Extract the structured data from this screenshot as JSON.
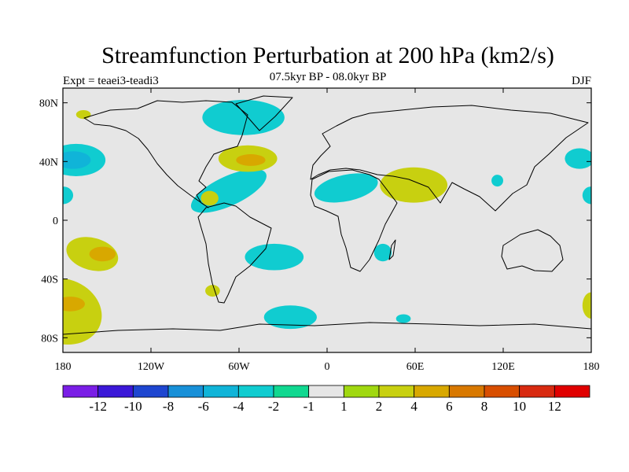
{
  "chart_data": {
    "type": "filled-contour-map",
    "title": "Streamfunction Perturbation at 200 hPa (km2/s)",
    "subtitle": "07.5kyr BP - 08.0kyr BP",
    "left_label": "Expt = teaei3-teadi3",
    "right_label": "DJF",
    "projection": "cylindrical-equidistant",
    "lon_range": [
      -180,
      180
    ],
    "lat_range": [
      -90,
      90
    ],
    "x_ticks": [
      {
        "value": -180,
        "label": "180"
      },
      {
        "value": -120,
        "label": "120W"
      },
      {
        "value": -60,
        "label": "60W"
      },
      {
        "value": 0,
        "label": "0"
      },
      {
        "value": 60,
        "label": "60E"
      },
      {
        "value": 120,
        "label": "120E"
      },
      {
        "value": 180,
        "label": "180"
      }
    ],
    "y_ticks": [
      {
        "value": 80,
        "label": "80N"
      },
      {
        "value": 40,
        "label": "40N"
      },
      {
        "value": 0,
        "label": "0"
      },
      {
        "value": -40,
        "label": "40S"
      },
      {
        "value": -80,
        "label": "80S"
      }
    ],
    "colorbar": {
      "labels": [
        "-12",
        "-10",
        "-8",
        "-6",
        "-4",
        "-2",
        "-1",
        "1",
        "2",
        "4",
        "6",
        "8",
        "10",
        "12"
      ],
      "colors": [
        "#7a1ee6",
        "#3b18d8",
        "#1e46d0",
        "#1890d8",
        "#10b4d8",
        "#10ccd0",
        "#10d890",
        "#e6e6e6",
        "#a0d810",
        "#c8d010",
        "#d8a800",
        "#d87800",
        "#d84e00",
        "#d82a10",
        "#e00000"
      ]
    },
    "background_color": "#e6e6e6",
    "regions": [
      {
        "lon": -171,
        "lat": 41,
        "rx": 20,
        "ry": 11,
        "level": "-2"
      },
      {
        "lon": -173,
        "lat": 41,
        "rx": 12,
        "ry": 6,
        "level": "-4"
      },
      {
        "lon": -180,
        "lat": 17,
        "rx": 7,
        "ry": 6,
        "level": "-2"
      },
      {
        "lon": -57,
        "lat": 70,
        "rx": 28,
        "ry": 12,
        "level": "-2"
      },
      {
        "lon": -67,
        "lat": 20,
        "rx": 28,
        "ry": 10,
        "level": "-2",
        "rot": -25
      },
      {
        "lon": -36,
        "lat": -25,
        "rx": 20,
        "ry": 9,
        "level": "-2"
      },
      {
        "lon": -25,
        "lat": -66,
        "rx": 18,
        "ry": 8,
        "level": "-2"
      },
      {
        "lon": 52,
        "lat": -67,
        "rx": 5,
        "ry": 3,
        "level": "-2"
      },
      {
        "lon": 13,
        "lat": 22,
        "rx": 22,
        "ry": 9,
        "level": "-2",
        "rot": -12
      },
      {
        "lon": 38,
        "lat": -22,
        "rx": 6,
        "ry": 6,
        "level": "-2"
      },
      {
        "lon": 116,
        "lat": 27,
        "rx": 4,
        "ry": 4,
        "level": "-2"
      },
      {
        "lon": 172,
        "lat": 42,
        "rx": 10,
        "ry": 7,
        "level": "-2"
      },
      {
        "lon": 180,
        "lat": 17,
        "rx": 6,
        "ry": 6,
        "level": "-2"
      },
      {
        "lon": -160,
        "lat": -23,
        "rx": 18,
        "ry": 11,
        "level": "2",
        "rot": 15
      },
      {
        "lon": -153,
        "lat": -23,
        "rx": 9,
        "ry": 5,
        "level": "4"
      },
      {
        "lon": -180,
        "lat": -62,
        "rx": 27,
        "ry": 22,
        "level": "2",
        "rot": 20
      },
      {
        "lon": -175,
        "lat": -57,
        "rx": 10,
        "ry": 5,
        "level": "4"
      },
      {
        "lon": -54,
        "lat": 42,
        "rx": 20,
        "ry": 9,
        "level": "2"
      },
      {
        "lon": -52,
        "lat": 41,
        "rx": 10,
        "ry": 4,
        "level": "4"
      },
      {
        "lon": 59,
        "lat": 24,
        "rx": 23,
        "ry": 12,
        "level": "2"
      },
      {
        "lon": 180,
        "lat": -58,
        "rx": 6,
        "ry": 9,
        "level": "2"
      },
      {
        "lon": -166,
        "lat": 72,
        "rx": 5,
        "ry": 3,
        "level": "2"
      },
      {
        "lon": -80,
        "lat": 15,
        "rx": 6,
        "ry": 5,
        "level": "2"
      },
      {
        "lon": -78,
        "lat": -48,
        "rx": 5,
        "ry": 4,
        "level": "2"
      }
    ]
  }
}
